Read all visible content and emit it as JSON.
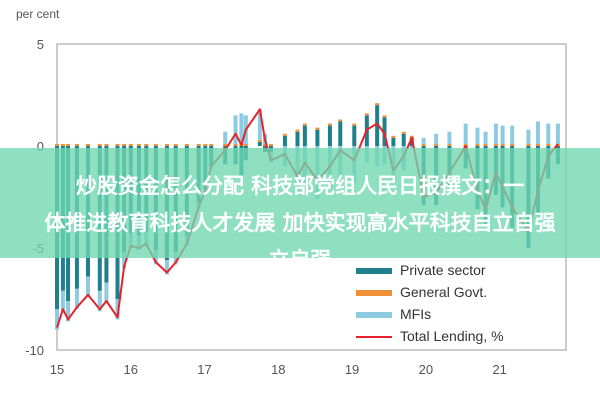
{
  "chart_data": {
    "type": "bar",
    "ylabel": "per cent",
    "ylim": [
      -10,
      5
    ],
    "yticks": [
      "5",
      "0",
      "-5",
      "-10"
    ],
    "xlim": [
      2015,
      2021.9
    ],
    "xticks": [
      "15",
      "16",
      "17",
      "18",
      "19",
      "20",
      "21"
    ],
    "legend_position": "bottom-right",
    "grid": false,
    "x": [
      2015.0,
      2015.08,
      2015.15,
      2015.27,
      2015.42,
      2015.58,
      2015.67,
      2015.82,
      2015.91,
      2016.0,
      2016.11,
      2016.21,
      2016.34,
      2016.49,
      2016.61,
      2016.76,
      2016.92,
      2017.01,
      2017.09,
      2017.28,
      2017.42,
      2017.5,
      2017.56,
      2017.75,
      2017.82,
      2017.9,
      2018.09,
      2018.26,
      2018.36,
      2018.53,
      2018.7,
      2018.84,
      2019.03,
      2019.2,
      2019.34,
      2019.44,
      2019.56,
      2019.7,
      2019.81,
      2019.97,
      2020.14,
      2020.32,
      2020.54,
      2020.7,
      2020.81,
      2020.95,
      2021.04,
      2021.17,
      2021.39,
      2021.52,
      2021.66,
      2021.79
    ],
    "series": [
      {
        "name": "Private sector",
        "kind": "bar",
        "color": "#1f7f8c",
        "values": [
          -8.0,
          -7.1,
          -7.6,
          -7.0,
          -6.4,
          -7.1,
          -6.7,
          -7.5,
          -5.2,
          -4.3,
          -4.4,
          -4.2,
          -5.1,
          -5.6,
          -5.2,
          -4.4,
          -2.8,
          -2.1,
          -1.0,
          -0.9,
          -0.9,
          -1.5,
          -0.7,
          0.2,
          -0.3,
          -0.3,
          0.5,
          0.7,
          1.0,
          0.8,
          1.0,
          1.2,
          1.0,
          1.5,
          2.0,
          1.4,
          0.4,
          0.6,
          0.4,
          -2.9,
          -2.9,
          -2.0,
          -1.1,
          -3.1,
          -3.8,
          -2.4,
          -3.0,
          -4.0,
          -5.0,
          -3.4,
          -1.6,
          -0.9
        ]
      },
      {
        "name": "General Govt.",
        "kind": "bar",
        "color": "#f0913a",
        "values": [
          0.1,
          0.1,
          0.1,
          0.1,
          0.1,
          0.1,
          0.1,
          0.1,
          0.1,
          0.1,
          0.1,
          0.1,
          0.1,
          0.1,
          0.1,
          0.1,
          0.1,
          0.1,
          0.1,
          0.1,
          0.1,
          0.1,
          0.1,
          0.1,
          0.1,
          0.1,
          0.1,
          0.1,
          0.1,
          0.1,
          0.1,
          0.1,
          0.1,
          0.1,
          0.1,
          0.1,
          0.1,
          0.1,
          0.1,
          0.1,
          0.1,
          0.1,
          0.1,
          0.1,
          0.1,
          0.1,
          0.1,
          0.1,
          0.1,
          0.1,
          0.1,
          0.1
        ]
      },
      {
        "name": "MFIs",
        "kind": "bar",
        "color": "#8ecae0",
        "values": [
          -1.0,
          -1.0,
          -1.0,
          -1.0,
          -1.0,
          -1.0,
          -1.0,
          -1.0,
          -0.8,
          -0.7,
          -0.7,
          -0.7,
          -0.7,
          -0.7,
          -0.6,
          -0.5,
          -0.3,
          -0.2,
          -0.1,
          0.6,
          1.4,
          1.5,
          1.4,
          1.5,
          0.5,
          -0.5,
          -1.0,
          -2.3,
          -1.9,
          -2.6,
          -2.1,
          -1.5,
          -1.8,
          -0.8,
          -1.0,
          -0.9,
          -1.7,
          -1.2,
          -0.1,
          0.3,
          0.5,
          0.6,
          1.0,
          0.8,
          0.6,
          1.0,
          0.9,
          0.9,
          0.7,
          1.1,
          1.0,
          1.0
        ]
      },
      {
        "name": "Total Lending, %",
        "kind": "line",
        "color": "#e8222b",
        "values": [
          -8.9,
          -8.0,
          -8.5,
          -7.9,
          -7.3,
          -8.0,
          -7.6,
          -8.4,
          -5.9,
          -4.9,
          -5.0,
          -4.8,
          -5.7,
          -6.2,
          -5.7,
          -4.8,
          -3.0,
          -2.2,
          -1.0,
          -0.2,
          0.6,
          0.05,
          0.8,
          1.8,
          0.3,
          -0.7,
          -0.4,
          -1.5,
          -0.8,
          -1.7,
          -1.0,
          -0.2,
          -0.7,
          0.8,
          1.1,
          0.6,
          -1.2,
          -0.5,
          0.4,
          -2.5,
          -2.3,
          -1.3,
          0.0,
          -2.2,
          -3.1,
          -1.3,
          -2.0,
          -3.0,
          -4.2,
          -2.2,
          -0.5,
          0.1
        ]
      }
    ]
  },
  "overlay": {
    "lines": [
      "炒股资金怎么分配 科技部党组人民日报撰文：一",
      "体推进教育科技人才发展 加快实现高水平科技自立自强",
      "立自强"
    ]
  }
}
